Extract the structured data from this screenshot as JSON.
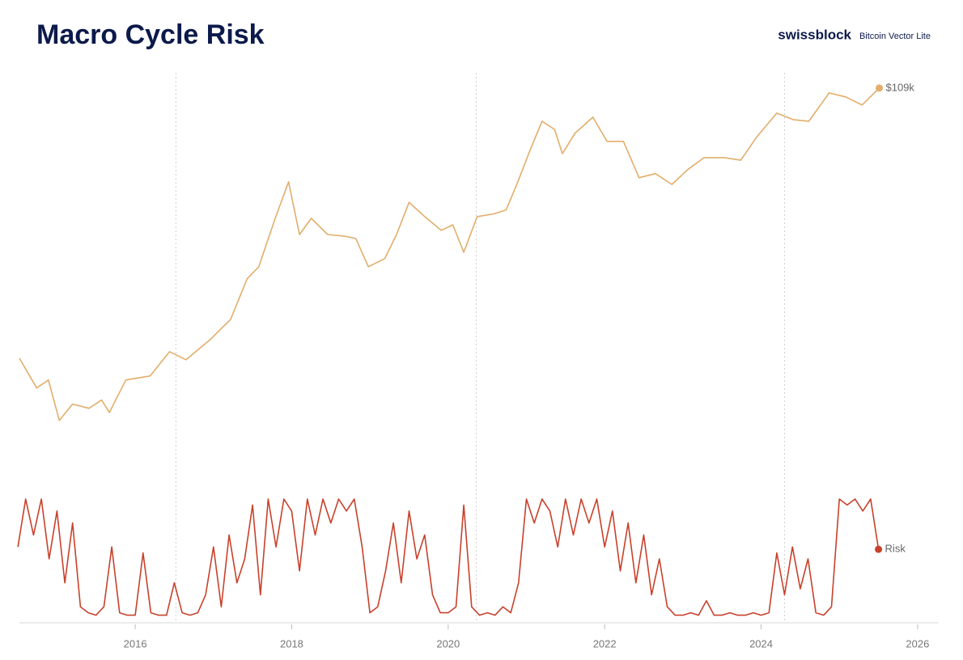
{
  "header": {
    "brand": "swissblock",
    "product": "Bitcoin Vector Lite"
  },
  "chart_data": [
    {
      "type": "line",
      "title": "Macro Cycle Risk",
      "log_scale": true,
      "color": "#e2ad6b",
      "xlim": [
        2014.52,
        2026.27
      ],
      "ylim": [
        117,
        145000
      ],
      "markers": [
        2016.52,
        2020.36,
        2024.3
      ],
      "x": [
        2014.52,
        2014.74,
        2014.89,
        2015.03,
        2015.2,
        2015.41,
        2015.57,
        2015.67,
        2015.88,
        2016.19,
        2016.44,
        2016.65,
        2016.96,
        2017.22,
        2017.43,
        2017.58,
        2017.79,
        2017.96,
        2018.1,
        2018.25,
        2018.46,
        2018.67,
        2018.82,
        2018.98,
        2019.19,
        2019.34,
        2019.5,
        2019.7,
        2019.91,
        2020.06,
        2020.2,
        2020.37,
        2020.58,
        2020.74,
        2020.89,
        2021.05,
        2021.2,
        2021.36,
        2021.46,
        2021.62,
        2021.85,
        2022.03,
        2022.24,
        2022.44,
        2022.65,
        2022.86,
        2023.06,
        2023.27,
        2023.53,
        2023.74,
        2023.94,
        2024.2,
        2024.41,
        2024.61,
        2024.87,
        2025.08,
        2025.29,
        2025.51
      ],
      "values": [
        690,
        395,
        459,
        215,
        292,
        270,
        315,
        250,
        459,
        495,
        780,
        670,
        980,
        1430,
        3050,
        3830,
        9500,
        18800,
        7000,
        9500,
        7000,
        6800,
        6500,
        3830,
        4460,
        7000,
        12800,
        9800,
        7570,
        8400,
        5020,
        9800,
        10300,
        11100,
        18800,
        34400,
        58500,
        50200,
        31900,
        46600,
        63100,
        40100,
        40100,
        20300,
        21900,
        17900,
        23600,
        29600,
        29600,
        28200,
        43200,
        68100,
        60300,
        58500,
        99500,
        92300,
        79300,
        109000
      ],
      "end_label": "$109k"
    },
    {
      "type": "line",
      "series_name": "Risk",
      "color": "#c8412b",
      "xlim": [
        2014.52,
        2026.27
      ],
      "ylim": [
        0,
        1
      ],
      "xticks": [
        2016,
        2018,
        2020,
        2022,
        2024,
        2026
      ],
      "markers": [
        2016.52,
        2020.36,
        2024.3
      ],
      "x": [
        2014.5,
        2014.6,
        2014.7,
        2014.8,
        2014.9,
        2015.0,
        2015.1,
        2015.2,
        2015.3,
        2015.4,
        2015.5,
        2015.6,
        2015.7,
        2015.8,
        2015.9,
        2016.0,
        2016.1,
        2016.2,
        2016.3,
        2016.4,
        2016.5,
        2016.6,
        2016.7,
        2016.8,
        2016.9,
        2017.0,
        2017.1,
        2017.2,
        2017.3,
        2017.4,
        2017.5,
        2017.6,
        2017.7,
        2017.8,
        2017.9,
        2018.0,
        2018.1,
        2018.2,
        2018.3,
        2018.4,
        2018.5,
        2018.6,
        2018.7,
        2018.8,
        2018.9,
        2019.0,
        2019.1,
        2019.2,
        2019.3,
        2019.4,
        2019.5,
        2019.6,
        2019.7,
        2019.8,
        2019.9,
        2020.0,
        2020.1,
        2020.2,
        2020.3,
        2020.4,
        2020.5,
        2020.6,
        2020.7,
        2020.8,
        2020.9,
        2021.0,
        2021.1,
        2021.2,
        2021.3,
        2021.4,
        2021.5,
        2021.6,
        2021.7,
        2021.8,
        2021.9,
        2022.0,
        2022.1,
        2022.2,
        2022.3,
        2022.4,
        2022.5,
        2022.6,
        2022.7,
        2022.8,
        2022.9,
        2023.0,
        2023.1,
        2023.2,
        2023.3,
        2023.4,
        2023.5,
        2023.6,
        2023.7,
        2023.8,
        2023.9,
        2024.0,
        2024.1,
        2024.2,
        2024.3,
        2024.4,
        2024.5,
        2024.6,
        2024.7,
        2024.8,
        2024.9,
        2025.0,
        2025.1,
        2025.2,
        2025.3,
        2025.4,
        2025.5
      ],
      "values": [
        0.6,
        1,
        0.7,
        1,
        0.5,
        0.9,
        0.3,
        0.8,
        0.1,
        0.05,
        0.03,
        0.1,
        0.6,
        0.05,
        0.03,
        0.03,
        0.55,
        0.05,
        0.03,
        0.03,
        0.3,
        0.05,
        0.03,
        0.05,
        0.2,
        0.6,
        0.1,
        0.7,
        0.3,
        0.5,
        0.95,
        0.2,
        1,
        0.6,
        1,
        0.9,
        0.4,
        1,
        0.7,
        1,
        0.8,
        1,
        0.9,
        1,
        0.6,
        0.05,
        0.1,
        0.4,
        0.8,
        0.3,
        0.9,
        0.5,
        0.7,
        0.2,
        0.05,
        0.05,
        0.1,
        0.95,
        0.1,
        0.03,
        0.05,
        0.03,
        0.1,
        0.05,
        0.3,
        1,
        0.8,
        1,
        0.9,
        0.6,
        1,
        0.7,
        1,
        0.8,
        1,
        0.6,
        0.9,
        0.4,
        0.8,
        0.3,
        0.7,
        0.2,
        0.5,
        0.1,
        0.03,
        0.03,
        0.05,
        0.03,
        0.15,
        0.03,
        0.03,
        0.05,
        0.03,
        0.03,
        0.05,
        0.03,
        0.05,
        0.55,
        0.2,
        0.6,
        0.25,
        0.5,
        0.05,
        0.03,
        0.1,
        1,
        0.95,
        1,
        0.9,
        1,
        0.58
      ]
    }
  ]
}
